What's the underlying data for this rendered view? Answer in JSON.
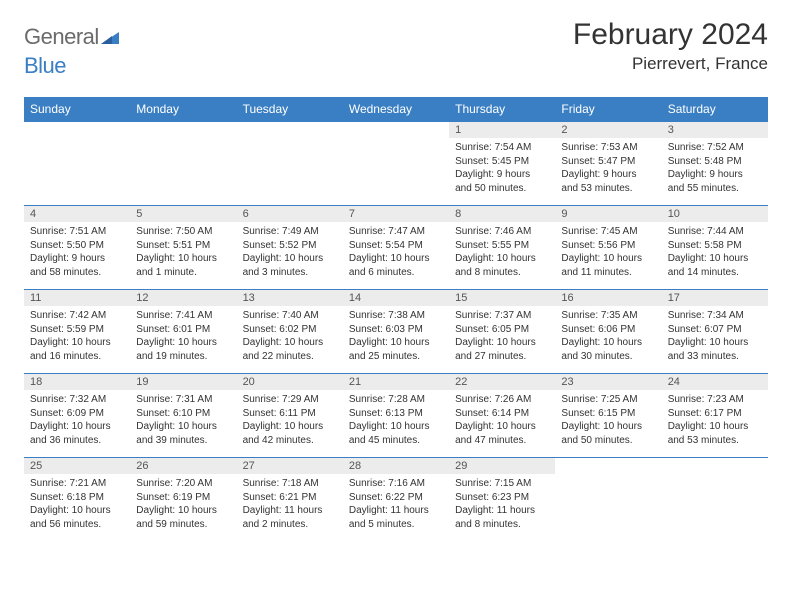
{
  "brand": {
    "part1": "General",
    "part2": "Blue"
  },
  "title": "February 2024",
  "location": "Pierrevert, France",
  "colors": {
    "header_bg": "#3a7fc4",
    "header_text": "#ffffff",
    "daynum_bg": "#ececec",
    "border": "#3a7fc4",
    "logo_gray": "#6b6b6b",
    "logo_blue": "#3a7fc4"
  },
  "weekdays": [
    "Sunday",
    "Monday",
    "Tuesday",
    "Wednesday",
    "Thursday",
    "Friday",
    "Saturday"
  ],
  "weeks": [
    [
      {
        "empty": true
      },
      {
        "empty": true
      },
      {
        "empty": true
      },
      {
        "empty": true
      },
      {
        "n": "1",
        "sr": "Sunrise: 7:54 AM",
        "ss": "Sunset: 5:45 PM",
        "dl": "Daylight: 9 hours and 50 minutes."
      },
      {
        "n": "2",
        "sr": "Sunrise: 7:53 AM",
        "ss": "Sunset: 5:47 PM",
        "dl": "Daylight: 9 hours and 53 minutes."
      },
      {
        "n": "3",
        "sr": "Sunrise: 7:52 AM",
        "ss": "Sunset: 5:48 PM",
        "dl": "Daylight: 9 hours and 55 minutes."
      }
    ],
    [
      {
        "n": "4",
        "sr": "Sunrise: 7:51 AM",
        "ss": "Sunset: 5:50 PM",
        "dl": "Daylight: 9 hours and 58 minutes."
      },
      {
        "n": "5",
        "sr": "Sunrise: 7:50 AM",
        "ss": "Sunset: 5:51 PM",
        "dl": "Daylight: 10 hours and 1 minute."
      },
      {
        "n": "6",
        "sr": "Sunrise: 7:49 AM",
        "ss": "Sunset: 5:52 PM",
        "dl": "Daylight: 10 hours and 3 minutes."
      },
      {
        "n": "7",
        "sr": "Sunrise: 7:47 AM",
        "ss": "Sunset: 5:54 PM",
        "dl": "Daylight: 10 hours and 6 minutes."
      },
      {
        "n": "8",
        "sr": "Sunrise: 7:46 AM",
        "ss": "Sunset: 5:55 PM",
        "dl": "Daylight: 10 hours and 8 minutes."
      },
      {
        "n": "9",
        "sr": "Sunrise: 7:45 AM",
        "ss": "Sunset: 5:56 PM",
        "dl": "Daylight: 10 hours and 11 minutes."
      },
      {
        "n": "10",
        "sr": "Sunrise: 7:44 AM",
        "ss": "Sunset: 5:58 PM",
        "dl": "Daylight: 10 hours and 14 minutes."
      }
    ],
    [
      {
        "n": "11",
        "sr": "Sunrise: 7:42 AM",
        "ss": "Sunset: 5:59 PM",
        "dl": "Daylight: 10 hours and 16 minutes."
      },
      {
        "n": "12",
        "sr": "Sunrise: 7:41 AM",
        "ss": "Sunset: 6:01 PM",
        "dl": "Daylight: 10 hours and 19 minutes."
      },
      {
        "n": "13",
        "sr": "Sunrise: 7:40 AM",
        "ss": "Sunset: 6:02 PM",
        "dl": "Daylight: 10 hours and 22 minutes."
      },
      {
        "n": "14",
        "sr": "Sunrise: 7:38 AM",
        "ss": "Sunset: 6:03 PM",
        "dl": "Daylight: 10 hours and 25 minutes."
      },
      {
        "n": "15",
        "sr": "Sunrise: 7:37 AM",
        "ss": "Sunset: 6:05 PM",
        "dl": "Daylight: 10 hours and 27 minutes."
      },
      {
        "n": "16",
        "sr": "Sunrise: 7:35 AM",
        "ss": "Sunset: 6:06 PM",
        "dl": "Daylight: 10 hours and 30 minutes."
      },
      {
        "n": "17",
        "sr": "Sunrise: 7:34 AM",
        "ss": "Sunset: 6:07 PM",
        "dl": "Daylight: 10 hours and 33 minutes."
      }
    ],
    [
      {
        "n": "18",
        "sr": "Sunrise: 7:32 AM",
        "ss": "Sunset: 6:09 PM",
        "dl": "Daylight: 10 hours and 36 minutes."
      },
      {
        "n": "19",
        "sr": "Sunrise: 7:31 AM",
        "ss": "Sunset: 6:10 PM",
        "dl": "Daylight: 10 hours and 39 minutes."
      },
      {
        "n": "20",
        "sr": "Sunrise: 7:29 AM",
        "ss": "Sunset: 6:11 PM",
        "dl": "Daylight: 10 hours and 42 minutes."
      },
      {
        "n": "21",
        "sr": "Sunrise: 7:28 AM",
        "ss": "Sunset: 6:13 PM",
        "dl": "Daylight: 10 hours and 45 minutes."
      },
      {
        "n": "22",
        "sr": "Sunrise: 7:26 AM",
        "ss": "Sunset: 6:14 PM",
        "dl": "Daylight: 10 hours and 47 minutes."
      },
      {
        "n": "23",
        "sr": "Sunrise: 7:25 AM",
        "ss": "Sunset: 6:15 PM",
        "dl": "Daylight: 10 hours and 50 minutes."
      },
      {
        "n": "24",
        "sr": "Sunrise: 7:23 AM",
        "ss": "Sunset: 6:17 PM",
        "dl": "Daylight: 10 hours and 53 minutes."
      }
    ],
    [
      {
        "n": "25",
        "sr": "Sunrise: 7:21 AM",
        "ss": "Sunset: 6:18 PM",
        "dl": "Daylight: 10 hours and 56 minutes."
      },
      {
        "n": "26",
        "sr": "Sunrise: 7:20 AM",
        "ss": "Sunset: 6:19 PM",
        "dl": "Daylight: 10 hours and 59 minutes."
      },
      {
        "n": "27",
        "sr": "Sunrise: 7:18 AM",
        "ss": "Sunset: 6:21 PM",
        "dl": "Daylight: 11 hours and 2 minutes."
      },
      {
        "n": "28",
        "sr": "Sunrise: 7:16 AM",
        "ss": "Sunset: 6:22 PM",
        "dl": "Daylight: 11 hours and 5 minutes."
      },
      {
        "n": "29",
        "sr": "Sunrise: 7:15 AM",
        "ss": "Sunset: 6:23 PM",
        "dl": "Daylight: 11 hours and 8 minutes."
      },
      {
        "empty": true
      },
      {
        "empty": true
      }
    ]
  ]
}
